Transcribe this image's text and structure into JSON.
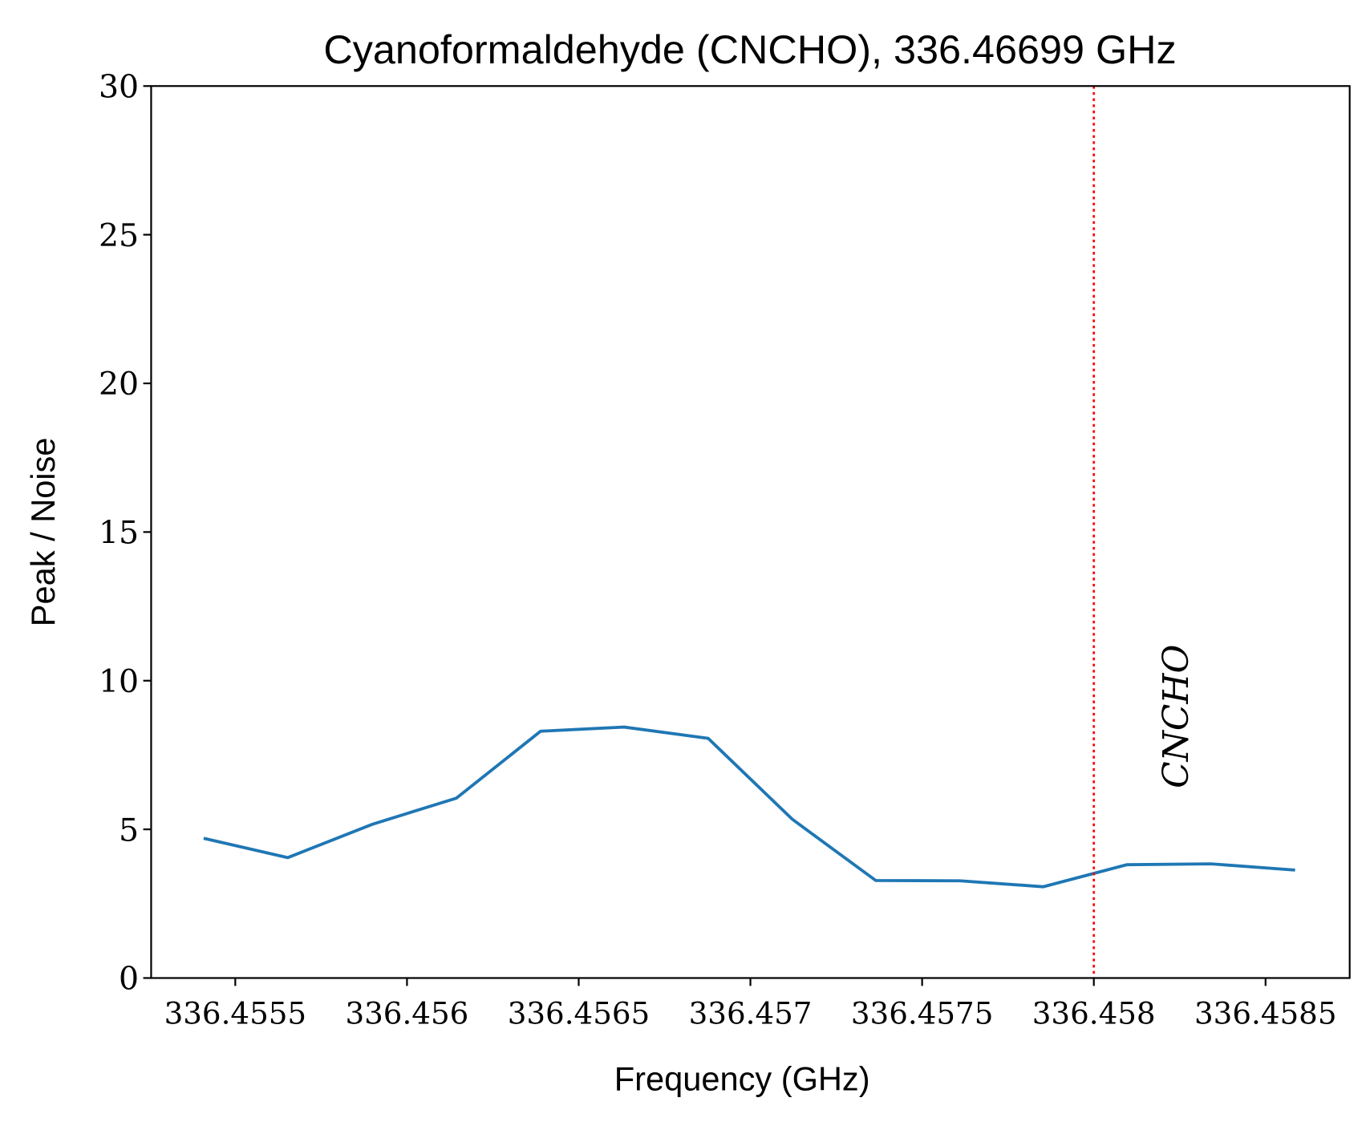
{
  "chart_data": {
    "type": "line",
    "title": "Cyanoformaldehyde (CNCHO), 336.46699 GHz",
    "xlabel": "Frequency (GHz)",
    "ylabel": "Peak / Noise",
    "x": [
      336.455408,
      336.455653,
      336.455899,
      336.456144,
      336.456389,
      336.456632,
      336.456877,
      336.457122,
      336.457365,
      336.45761,
      336.457853,
      336.458096,
      336.458341,
      336.458586
    ],
    "series": [
      {
        "color": "#1f77b4",
        "values": [
          4.7,
          4.05,
          5.17,
          6.05,
          8.3,
          8.44,
          8.06,
          5.34,
          3.28,
          3.27,
          3.07,
          3.81,
          3.84,
          3.63
        ]
      }
    ],
    "xlim": [
      336.455255,
      336.458745
    ],
    "ylim": [
      0,
      30
    ],
    "xticks": [
      336.4555,
      336.456,
      336.4565,
      336.457,
      336.4575,
      336.458,
      336.4585
    ],
    "yticks": [
      0,
      5,
      10,
      15,
      20,
      25,
      30
    ],
    "vlines": [
      {
        "x": 336.458,
        "color": "red",
        "label": "CNCHO"
      }
    ]
  }
}
